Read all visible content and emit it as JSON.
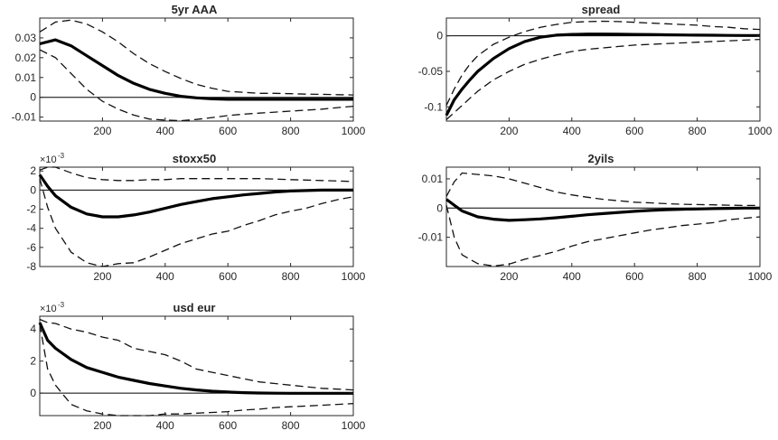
{
  "figure": {
    "title": ""
  },
  "chart_data": [
    {
      "type": "line",
      "title": "5yr AAA",
      "xlabel": "",
      "ylabel": "",
      "xlim": [
        0,
        1000
      ],
      "ylim": [
        -0.012,
        0.04
      ],
      "xticks": [
        200,
        400,
        600,
        800,
        1000
      ],
      "xtick_labels": [
        "200",
        "400",
        "600",
        "800",
        "1000"
      ],
      "yticks": [
        -0.01,
        0,
        0.01,
        0.02,
        0.03
      ],
      "ytick_labels": [
        "-0.01",
        "0",
        "0.01",
        "0.02",
        "0.03"
      ],
      "exponent_label": "",
      "grid": false,
      "reference_line": 0,
      "x": [
        0,
        50,
        100,
        150,
        200,
        250,
        300,
        350,
        400,
        450,
        500,
        550,
        600,
        650,
        700,
        750,
        800,
        850,
        900,
        950,
        1000
      ],
      "series": [
        {
          "style": "solid",
          "values": [
            0.027,
            0.029,
            0.026,
            0.021,
            0.016,
            0.011,
            0.007,
            0.004,
            0.002,
            0.0005,
            -0.0003,
            -0.0008,
            -0.001,
            -0.001,
            -0.001,
            -0.001,
            -0.001,
            -0.001,
            -0.001,
            -0.001,
            -0.001
          ]
        },
        {
          "style": "dashed",
          "values": [
            0.033,
            0.038,
            0.039,
            0.037,
            0.033,
            0.028,
            0.022,
            0.017,
            0.013,
            0.0095,
            0.0065,
            0.0045,
            0.003,
            0.0025,
            0.002,
            0.002,
            0.0018,
            0.0016,
            0.0015,
            0.0013,
            0.0012
          ]
        },
        {
          "style": "dashed",
          "values": [
            0.024,
            0.02,
            0.012,
            0.004,
            -0.002,
            -0.006,
            -0.009,
            -0.011,
            -0.0115,
            -0.0118,
            -0.0112,
            -0.0102,
            -0.0092,
            -0.0085,
            -0.008,
            -0.0075,
            -0.007,
            -0.0065,
            -0.006,
            -0.0052,
            -0.0045
          ]
        }
      ]
    },
    {
      "type": "line",
      "title": "spread",
      "xlabel": "",
      "ylabel": "",
      "xlim": [
        0,
        1000
      ],
      "ylim": [
        -0.12,
        0.025
      ],
      "xticks": [
        200,
        400,
        600,
        800,
        1000
      ],
      "xtick_labels": [
        "200",
        "400",
        "600",
        "800",
        "1000"
      ],
      "yticks": [
        -0.1,
        -0.05,
        0
      ],
      "ytick_labels": [
        "-0.1",
        "-0.05",
        "0"
      ],
      "exponent_label": "",
      "grid": false,
      "reference_line": 0,
      "x": [
        0,
        25,
        50,
        75,
        100,
        150,
        200,
        250,
        300,
        350,
        400,
        450,
        500,
        550,
        600,
        650,
        700,
        750,
        800,
        850,
        900,
        950,
        1000
      ],
      "series": [
        {
          "style": "solid",
          "values": [
            -0.112,
            -0.09,
            -0.075,
            -0.062,
            -0.05,
            -0.032,
            -0.018,
            -0.008,
            -0.002,
            0.001,
            0.002,
            0.0025,
            0.0025,
            0.0022,
            0.002,
            0.0018,
            0.0015,
            0.0012,
            0.001,
            0.0008,
            0.0006,
            0.0005,
            0.0005
          ]
        },
        {
          "style": "dashed",
          "values": [
            -0.098,
            -0.075,
            -0.055,
            -0.04,
            -0.028,
            -0.012,
            -0.002,
            0.006,
            0.012,
            0.016,
            0.019,
            0.02,
            0.0205,
            0.02,
            0.019,
            0.018,
            0.017,
            0.016,
            0.015,
            0.013,
            0.012,
            0.01,
            0.009
          ]
        },
        {
          "style": "dashed",
          "values": [
            -0.118,
            -0.108,
            -0.098,
            -0.088,
            -0.078,
            -0.062,
            -0.05,
            -0.04,
            -0.033,
            -0.027,
            -0.022,
            -0.019,
            -0.017,
            -0.015,
            -0.013,
            -0.012,
            -0.011,
            -0.01,
            -0.009,
            -0.008,
            -0.007,
            -0.006,
            -0.005
          ]
        }
      ]
    },
    {
      "type": "line",
      "title": "stoxx50",
      "xlabel": "",
      "ylabel": "",
      "xlim": [
        0,
        1000
      ],
      "ylim": [
        -8.0,
        2.4
      ],
      "xticks": [
        200,
        400,
        600,
        800,
        1000
      ],
      "xtick_labels": [
        "200",
        "400",
        "600",
        "800",
        "1000"
      ],
      "yticks": [
        -8,
        -6,
        -4,
        -2,
        0,
        2
      ],
      "ytick_labels": [
        "-8",
        "-6",
        "-4",
        "-2",
        "0",
        "2"
      ],
      "exponent_label": "×10",
      "exponent_power": "-3",
      "grid": false,
      "reference_line": 0,
      "x": [
        0,
        25,
        50,
        100,
        150,
        200,
        250,
        300,
        350,
        400,
        450,
        500,
        550,
        600,
        650,
        700,
        750,
        800,
        850,
        900,
        950,
        1000
      ],
      "series": [
        {
          "style": "solid",
          "values": [
            1.6,
            0.4,
            -0.6,
            -1.8,
            -2.5,
            -2.8,
            -2.8,
            -2.6,
            -2.3,
            -1.9,
            -1.5,
            -1.2,
            -0.9,
            -0.7,
            -0.5,
            -0.35,
            -0.2,
            -0.1,
            -0.05,
            0,
            0,
            0
          ]
        },
        {
          "style": "dashed",
          "values": [
            2.1,
            2.4,
            2.4,
            1.8,
            1.3,
            1.1,
            1.0,
            1.0,
            1.1,
            1.1,
            1.2,
            1.2,
            1.2,
            1.2,
            1.2,
            1.2,
            1.15,
            1.1,
            1.05,
            1.0,
            0.95,
            0.9
          ]
        },
        {
          "style": "dashed",
          "values": [
            1.2,
            -1.8,
            -4.0,
            -6.5,
            -7.6,
            -8.0,
            -7.7,
            -7.6,
            -7.0,
            -6.3,
            -5.6,
            -5.1,
            -4.6,
            -4.3,
            -3.7,
            -3.2,
            -2.6,
            -2.2,
            -1.9,
            -1.4,
            -1.0,
            -0.7
          ]
        }
      ]
    },
    {
      "type": "line",
      "title": "2yils",
      "xlabel": "",
      "ylabel": "",
      "xlim": [
        0,
        1000
      ],
      "ylim": [
        -0.02,
        0.014
      ],
      "xticks": [
        200,
        400,
        600,
        800,
        1000
      ],
      "xtick_labels": [
        "200",
        "400",
        "600",
        "800",
        "1000"
      ],
      "yticks": [
        -0.01,
        0,
        0.01
      ],
      "ytick_labels": [
        "-0.01",
        "0",
        "0.01"
      ],
      "exponent_label": "",
      "grid": false,
      "reference_line": 0,
      "x": [
        0,
        25,
        50,
        100,
        150,
        200,
        250,
        300,
        350,
        400,
        450,
        500,
        550,
        600,
        650,
        700,
        750,
        800,
        850,
        900,
        950,
        1000
      ],
      "series": [
        {
          "style": "solid",
          "values": [
            0.003,
            0.001,
            -0.001,
            -0.003,
            -0.0038,
            -0.0042,
            -0.004,
            -0.0037,
            -0.0033,
            -0.0028,
            -0.0023,
            -0.0019,
            -0.0015,
            -0.0011,
            -0.0008,
            -0.0006,
            -0.0004,
            -0.0003,
            -0.0002,
            -0.0001,
            0,
            0
          ]
        },
        {
          "style": "dashed",
          "values": [
            0.004,
            0.009,
            0.012,
            0.0115,
            0.011,
            0.01,
            0.0085,
            0.007,
            0.0055,
            0.0045,
            0.0037,
            0.003,
            0.0025,
            0.002,
            0.0018,
            0.0015,
            0.0013,
            0.0012,
            0.0011,
            0.001,
            0.0009,
            0.0009
          ]
        },
        {
          "style": "dashed",
          "values": [
            0.001,
            -0.01,
            -0.016,
            -0.019,
            -0.0198,
            -0.0192,
            -0.0175,
            -0.0162,
            -0.0148,
            -0.013,
            -0.0115,
            -0.0105,
            -0.0095,
            -0.0085,
            -0.0075,
            -0.0068,
            -0.006,
            -0.0055,
            -0.005,
            -0.004,
            -0.0035,
            -0.003
          ]
        }
      ]
    },
    {
      "type": "line",
      "title": "usd eur",
      "xlabel": "",
      "ylabel": "",
      "xlim": [
        0,
        1000
      ],
      "ylim": [
        -1.4,
        4.8
      ],
      "xticks": [
        200,
        400,
        600,
        800,
        1000
      ],
      "xtick_labels": [
        "200",
        "400",
        "600",
        "800",
        "1000"
      ],
      "yticks": [
        0,
        2,
        4
      ],
      "ytick_labels": [
        "0",
        "2",
        "4"
      ],
      "exponent_label": "×10",
      "exponent_power": "-3",
      "grid": false,
      "reference_line": 0,
      "x": [
        0,
        25,
        50,
        100,
        150,
        200,
        250,
        300,
        350,
        400,
        450,
        500,
        550,
        600,
        650,
        700,
        750,
        800,
        850,
        900,
        950,
        1000
      ],
      "series": [
        {
          "style": "solid",
          "values": [
            4.4,
            3.3,
            2.8,
            2.1,
            1.6,
            1.3,
            1.0,
            0.8,
            0.6,
            0.45,
            0.3,
            0.2,
            0.12,
            0.07,
            0.03,
            0.01,
            0,
            -0.01,
            -0.01,
            -0.01,
            -0.01,
            -0.01
          ]
        },
        {
          "style": "dashed",
          "values": [
            4.6,
            4.4,
            4.35,
            4.0,
            3.8,
            3.5,
            3.3,
            2.8,
            2.6,
            2.4,
            2.0,
            1.5,
            1.3,
            1.1,
            0.9,
            0.7,
            0.6,
            0.5,
            0.4,
            0.3,
            0.25,
            0.2
          ]
        },
        {
          "style": "dashed",
          "values": [
            4.3,
            1.5,
            0.5,
            -0.7,
            -1.1,
            -1.3,
            -1.4,
            -1.4,
            -1.4,
            -1.3,
            -1.3,
            -1.25,
            -1.2,
            -1.15,
            -1.05,
            -1.0,
            -0.9,
            -0.85,
            -0.8,
            -0.75,
            -0.7,
            -0.65
          ]
        }
      ]
    }
  ]
}
